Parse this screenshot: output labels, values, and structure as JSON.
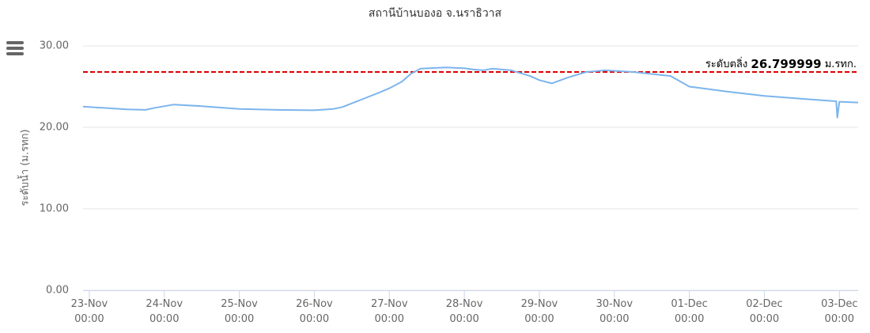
{
  "chart_data": {
    "type": "line",
    "title": "สถานีบ้านบองอ จ.นราธิวาส",
    "y_label": "ระดับน้ำ (ม.รทก)",
    "x": [
      "22-Nov 22:00",
      "23-Nov 12:00",
      "23-Nov 18:00",
      "23-Nov 21:00",
      "24-Nov 03:00",
      "24-Nov 12:00",
      "25-Nov 00:00",
      "25-Nov 12:00",
      "26-Nov 00:00",
      "26-Nov 06:00",
      "26-Nov 09:00",
      "26-Nov 15:00",
      "26-Nov 21:00",
      "27-Nov 00:00",
      "27-Nov 04:00",
      "27-Nov 07:00",
      "27-Nov 10:00",
      "27-Nov 18:00",
      "28-Nov 00:00",
      "28-Nov 03:00",
      "28-Nov 06:00",
      "28-Nov 09:00",
      "28-Nov 15:00",
      "28-Nov 21:00",
      "29-Nov 00:00",
      "29-Nov 04:00",
      "29-Nov 09:00",
      "29-Nov 15:00",
      "29-Nov 21:00",
      "30-Nov 06:00",
      "30-Nov 18:00",
      "01-Dec 00:00",
      "01-Dec 12:00",
      "02-Dec 00:00",
      "02-Dec 12:00",
      "02-Dec 21:00",
      "02-Dec 23:00",
      "02-Dec 23:20",
      "03-Dec 00:00",
      "03-Dec 06:00"
    ],
    "series": [
      {
        "name": "ระดับน้ำ",
        "color": "#7cb5ec",
        "values": [
          22.55,
          22.2,
          22.15,
          22.4,
          22.8,
          22.6,
          22.25,
          22.15,
          22.1,
          22.25,
          22.5,
          23.4,
          24.3,
          24.8,
          25.6,
          26.6,
          27.2,
          27.35,
          27.25,
          27.1,
          27.0,
          27.2,
          27.0,
          26.3,
          25.8,
          25.4,
          26.1,
          26.8,
          27.0,
          26.8,
          26.3,
          25.0,
          24.4,
          23.85,
          23.5,
          23.25,
          23.2,
          21.2,
          23.15,
          23.05
        ]
      }
    ],
    "threshold": {
      "label": "ระดับตลิ่ง",
      "value": 26.799999,
      "unit": "ม.รทก.",
      "color": "#dd0000"
    },
    "xlim": [
      "22-Nov 22:00",
      "03-Dec 06:00"
    ],
    "xticks": [
      "23-Nov 00:00",
      "24-Nov 00:00",
      "25-Nov 00:00",
      "26-Nov 00:00",
      "27-Nov 00:00",
      "28-Nov 00:00",
      "29-Nov 00:00",
      "30-Nov 00:00",
      "01-Dec 00:00",
      "02-Dec 00:00",
      "03-Dec 00:00"
    ],
    "ylim": [
      0,
      30
    ],
    "yticks": [
      {
        "value": 0,
        "label": "0.00"
      },
      {
        "value": 10,
        "label": "10.00"
      },
      {
        "value": 20,
        "label": "20.00"
      },
      {
        "value": 30,
        "label": "30.00"
      }
    ],
    "grid": true
  }
}
